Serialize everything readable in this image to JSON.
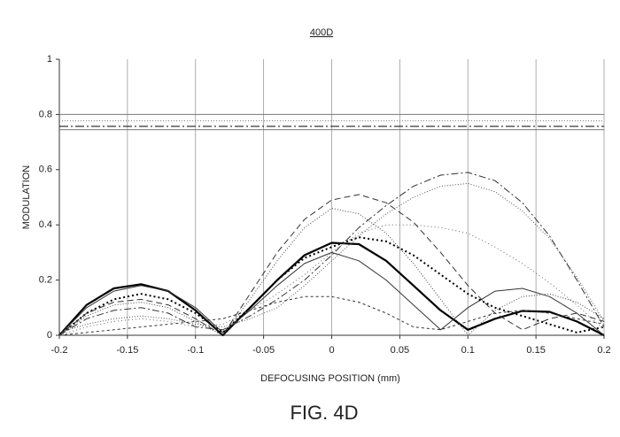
{
  "chart_data": {
    "type": "line",
    "title": "400D",
    "xlabel": "DEFOCUSING POSITION (mm)",
    "ylabel": "MODULATION",
    "caption": "FIG. 4D",
    "x": [
      -0.2,
      -0.18,
      -0.16,
      -0.14,
      -0.12,
      -0.1,
      -0.08,
      -0.06,
      -0.04,
      -0.02,
      0,
      0.02,
      0.04,
      0.06,
      0.08,
      0.1,
      0.12,
      0.14,
      0.16,
      0.18,
      0.2
    ],
    "xlim": [
      -0.2,
      0.2
    ],
    "xticks": [
      -0.2,
      -0.15,
      -0.1,
      -0.05,
      0,
      0.05,
      0.1,
      0.15,
      0.2
    ],
    "ylim": [
      0,
      1
    ],
    "yticks": [
      0,
      0.2,
      0.4,
      0.6,
      0.8,
      1
    ],
    "grid": "x",
    "series": [
      {
        "color": "#000",
        "width": 2.2,
        "dash": "none",
        "values": [
          0,
          0.11,
          0.17,
          0.185,
          0.16,
          0.09,
          0,
          0.1,
          0.2,
          0.29,
          0.335,
          0.33,
          0.27,
          0.18,
          0.09,
          0.02,
          0.06,
          0.088,
          0.085,
          0.05,
          0
        ]
      },
      {
        "color": "#333",
        "width": 1,
        "dash": "none",
        "values": [
          0,
          0.1,
          0.16,
          0.18,
          0.16,
          0.1,
          0.01,
          0.09,
          0.18,
          0.26,
          0.3,
          0.27,
          0.2,
          0.11,
          0.02,
          0.1,
          0.16,
          0.17,
          0.14,
          0.08,
          0
        ]
      },
      {
        "color": "#000",
        "width": 2,
        "dash": "2 3",
        "values": [
          0,
          0.08,
          0.13,
          0.15,
          0.13,
          0.08,
          0.01,
          0.1,
          0.2,
          0.28,
          0.32,
          0.355,
          0.34,
          0.29,
          0.22,
          0.15,
          0.1,
          0.07,
          0.04,
          0.01,
          0.03
        ]
      },
      {
        "color": "#333",
        "width": 1,
        "dash": "8 3 2 3",
        "values": [
          0,
          0.06,
          0.09,
          0.1,
          0.08,
          0.03,
          0.02,
          0.07,
          0.13,
          0.2,
          0.29,
          0.39,
          0.47,
          0.54,
          0.58,
          0.59,
          0.56,
          0.48,
          0.36,
          0.2,
          0.03
        ]
      },
      {
        "color": "#555",
        "width": 1,
        "dash": "1 2",
        "values": [
          0.01,
          0.04,
          0.06,
          0.07,
          0.06,
          0.04,
          0.03,
          0.06,
          0.1,
          0.18,
          0.27,
          0.36,
          0.44,
          0.5,
          0.54,
          0.55,
          0.52,
          0.45,
          0.35,
          0.21,
          0.05
        ]
      },
      {
        "color": "#333",
        "width": 1,
        "dash": "7 4",
        "values": [
          0,
          0.08,
          0.12,
          0.13,
          0.11,
          0.06,
          0,
          0.15,
          0.3,
          0.42,
          0.49,
          0.51,
          0.48,
          0.41,
          0.3,
          0.18,
          0.08,
          0.02,
          0.06,
          0.08,
          0.05
        ]
      },
      {
        "color": "#444",
        "width": 1,
        "dash": "1 2",
        "values": [
          0,
          0.07,
          0.11,
          0.12,
          0.1,
          0.05,
          0,
          0.13,
          0.27,
          0.39,
          0.46,
          0.44,
          0.37,
          0.26,
          0.13,
          0,
          0.09,
          0.14,
          0.15,
          0.12,
          0.06
        ]
      },
      {
        "color": "#333",
        "width": 1,
        "dash": "3 3",
        "values": [
          0,
          0.01,
          0.02,
          0.03,
          0.04,
          0.05,
          0.06,
          0.09,
          0.12,
          0.14,
          0.14,
          0.12,
          0.08,
          0.03,
          0.02,
          0.05,
          0.08,
          0.09,
          0.08,
          0.06,
          0.04
        ]
      },
      {
        "color": "#666",
        "width": 1,
        "dash": "1 3",
        "values": [
          0,
          0.03,
          0.05,
          0.06,
          0.05,
          0.03,
          0.04,
          0.09,
          0.15,
          0.22,
          0.3,
          0.37,
          0.4,
          0.4,
          0.39,
          0.37,
          0.32,
          0.26,
          0.19,
          0.11,
          0.02
        ]
      },
      {
        "color": "#777",
        "width": 1,
        "dash": "none",
        "values": [
          0.8,
          0.8,
          0.8,
          0.8,
          0.8,
          0.8,
          0.8,
          0.8,
          0.8,
          0.8,
          0.8,
          0.8,
          0.8,
          0.8,
          0.8,
          0.8,
          0.8,
          0.8,
          0.8,
          0.8,
          0.8
        ]
      },
      {
        "color": "#777",
        "width": 1,
        "dash": "1 2",
        "values": [
          0.777,
          0.777,
          0.777,
          0.777,
          0.777,
          0.777,
          0.777,
          0.777,
          0.777,
          0.777,
          0.777,
          0.777,
          0.777,
          0.777,
          0.777,
          0.777,
          0.777,
          0.777,
          0.777,
          0.777,
          0.777
        ]
      },
      {
        "color": "#222",
        "width": 1.2,
        "dash": "10 3 2 3",
        "values": [
          0.757,
          0.757,
          0.757,
          0.757,
          0.757,
          0.757,
          0.757,
          0.757,
          0.757,
          0.757,
          0.757,
          0.757,
          0.757,
          0.757,
          0.757,
          0.757,
          0.757,
          0.757,
          0.757,
          0.757,
          0.757
        ]
      },
      {
        "color": "#777",
        "width": 1,
        "dash": "none",
        "values": [
          0.745,
          0.745,
          0.745,
          0.745,
          0.745,
          0.745,
          0.745,
          0.745,
          0.745,
          0.745,
          0.745,
          0.745,
          0.745,
          0.745,
          0.745,
          0.745,
          0.745,
          0.745,
          0.745,
          0.745,
          0.745
        ]
      }
    ]
  }
}
